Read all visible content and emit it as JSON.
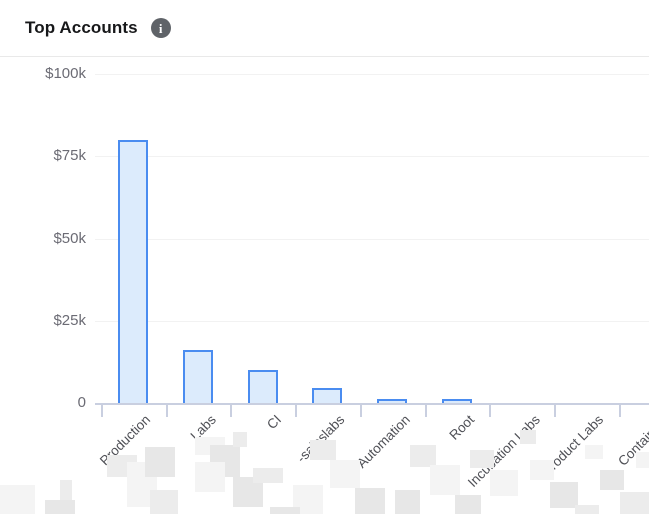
{
  "header": {
    "title": "Top Accounts",
    "info_glyph": "i"
  },
  "chart_data": {
    "type": "bar",
    "title": "Top Accounts",
    "categories": [
      "Production",
      "Labs",
      "CI",
      "-saleslabs",
      "Automation",
      "Root",
      "Incubation Labs",
      "Product Labs",
      "Containers"
    ],
    "values": [
      80000,
      16000,
      10000,
      4500,
      1200,
      1300,
      0,
      0,
      0
    ],
    "xlabel": "",
    "ylabel": "",
    "ylim": [
      0,
      100000
    ],
    "y_ticks": [
      {
        "label": "$100k",
        "value": 100000
      },
      {
        "label": "$75k",
        "value": 75000
      },
      {
        "label": "$50k",
        "value": 50000
      },
      {
        "label": "$25k",
        "value": 25000
      },
      {
        "label": "0",
        "value": 0
      }
    ],
    "grid": true,
    "legend": false,
    "bar_fill": "#dcebfc",
    "bar_border": "#4a8cf0",
    "axis_color": "#c9cfe0",
    "notes": "Several x-axis account labels are partially pixelated (redacted) in the source image."
  }
}
